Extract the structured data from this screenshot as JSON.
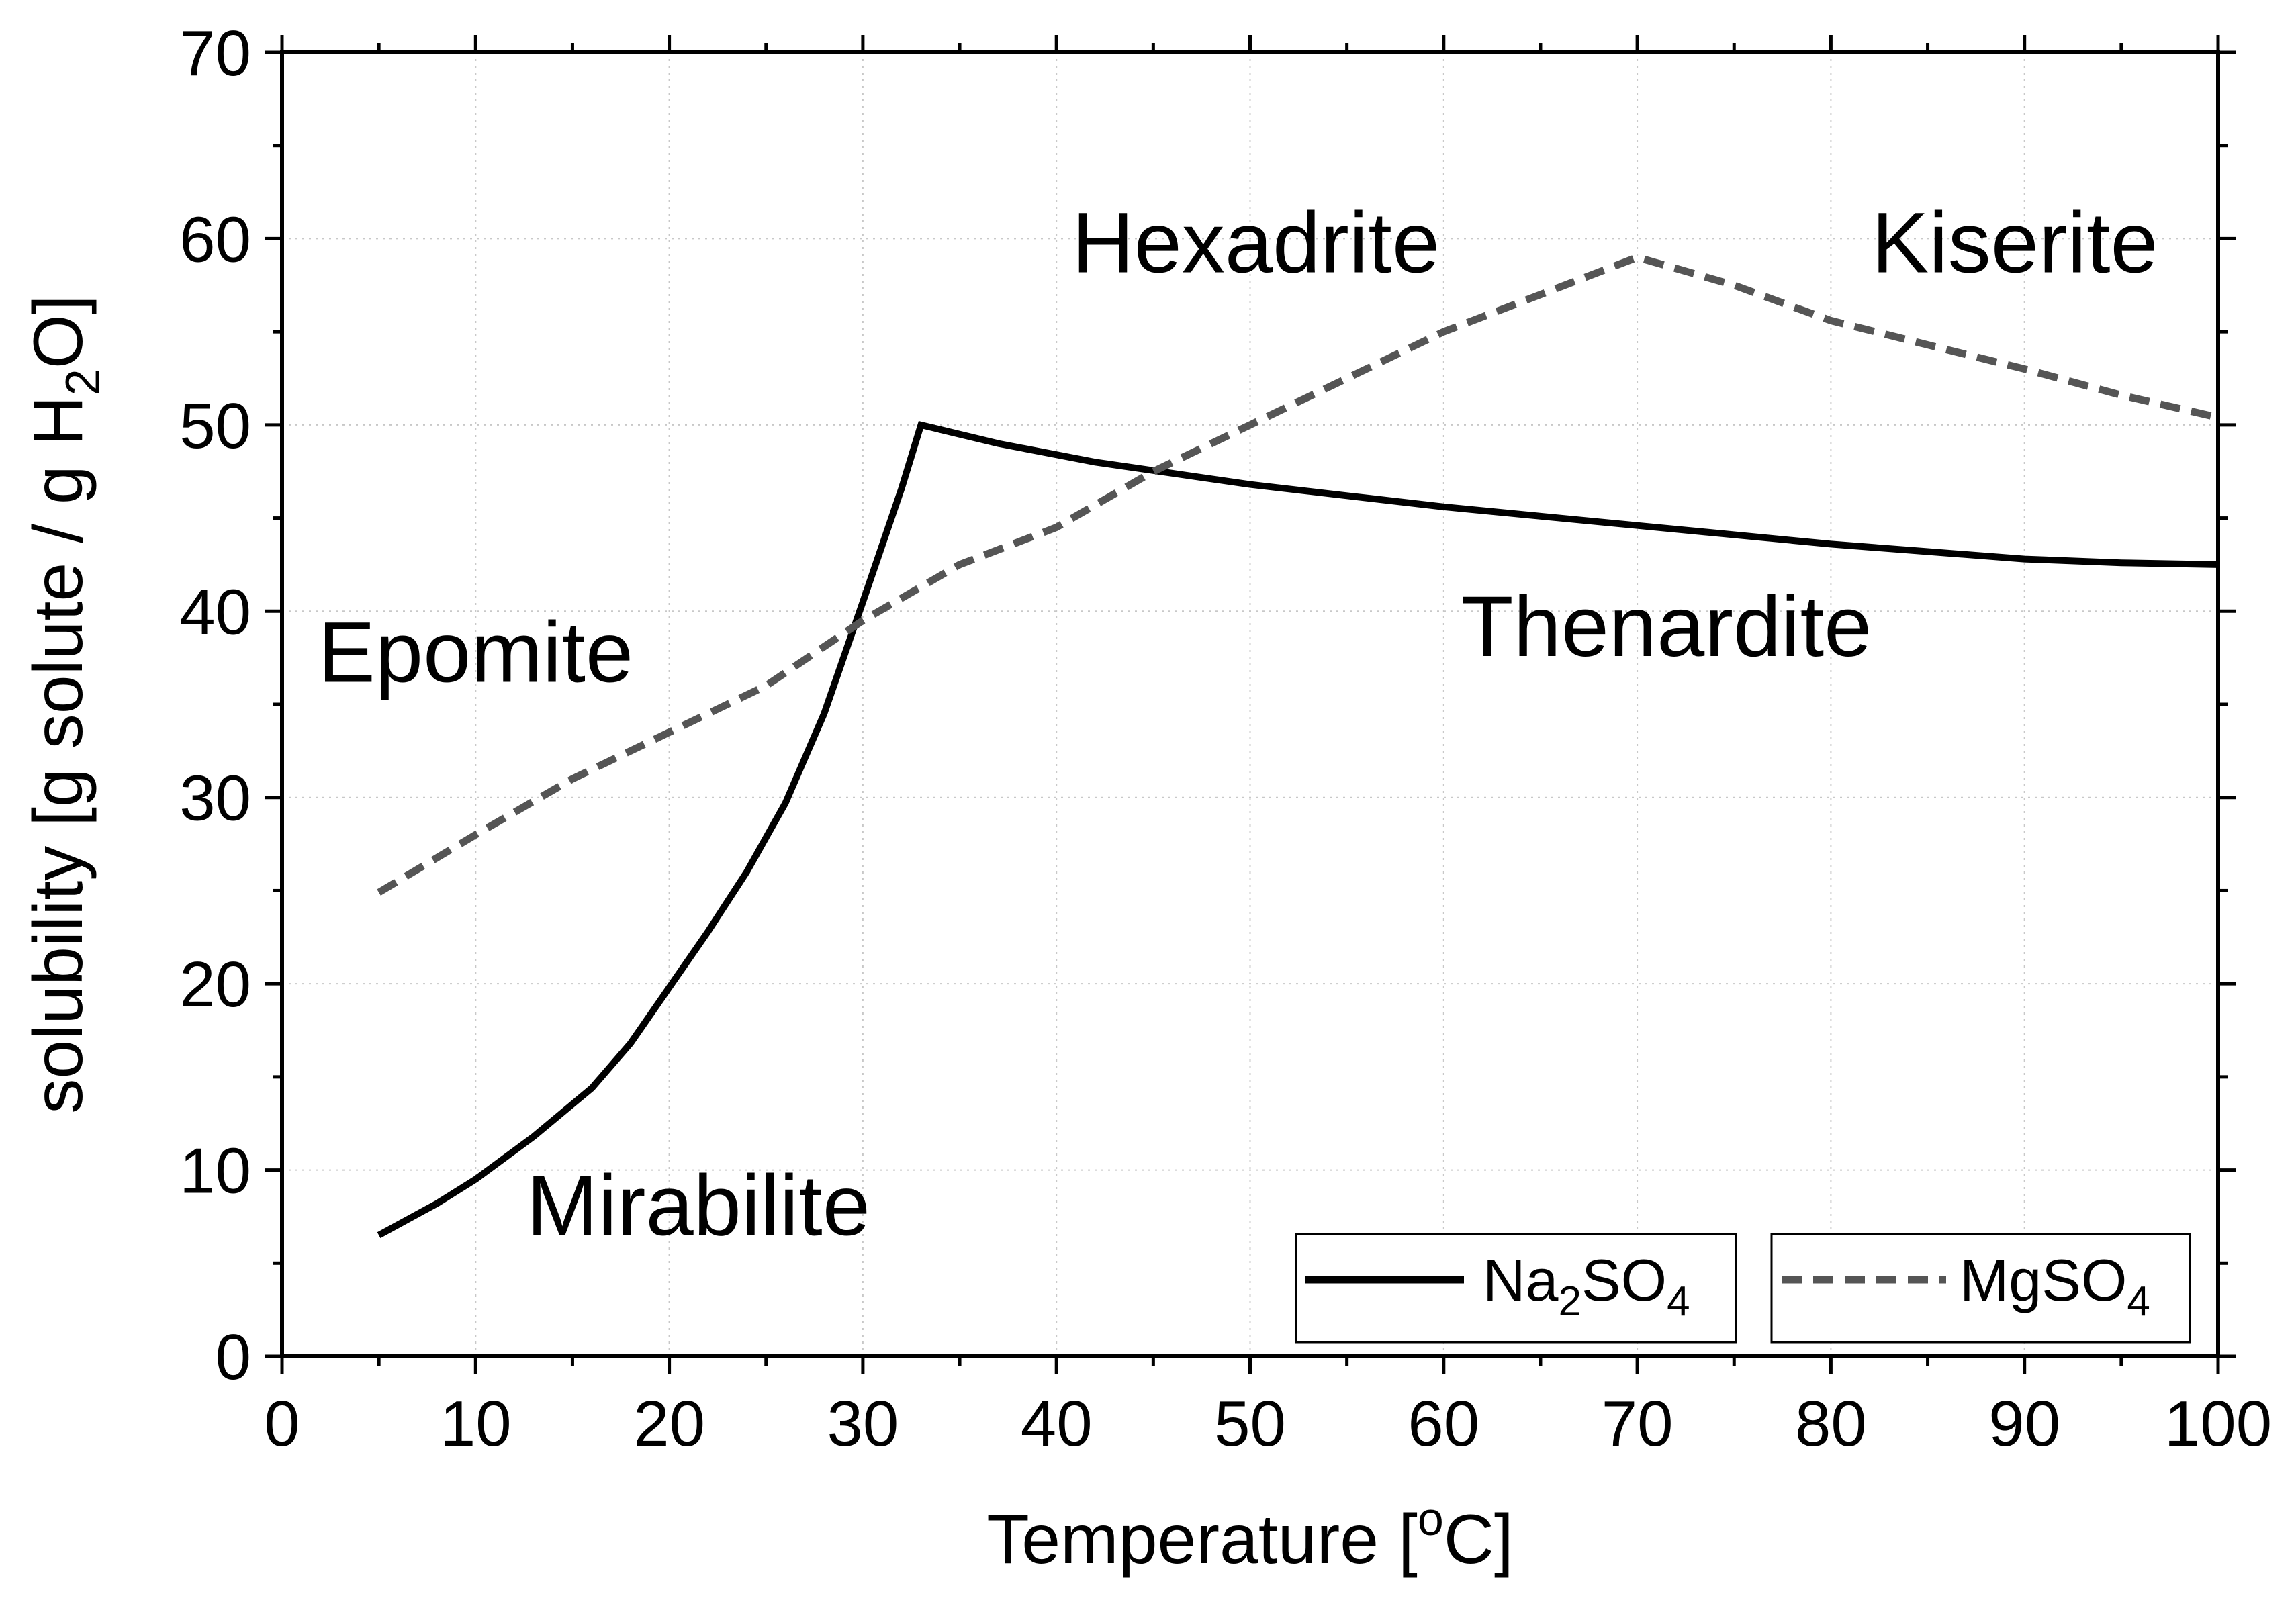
{
  "chart_data": {
    "type": "line",
    "title": "",
    "xlabel": "Temperature [°C]",
    "xlabel_parts": {
      "main": "Temperature [",
      "sup": "o",
      "end": "C]"
    },
    "ylabel": "solubility [g solute / g H2O]",
    "ylabel_parts": {
      "main": "solubility [g solute / g H",
      "sub": "2",
      "end": "O]"
    },
    "xlim": [
      0,
      100
    ],
    "ylim": [
      0,
      70
    ],
    "xticks": [
      0,
      10,
      20,
      30,
      40,
      50,
      60,
      70,
      80,
      90,
      100
    ],
    "yticks": [
      0,
      10,
      20,
      30,
      40,
      50,
      60,
      70
    ],
    "grid": true,
    "legend_position": "bottom-right",
    "series": [
      {
        "name": "Na2SO4",
        "name_parts": {
          "a": "Na",
          "sub1": "2",
          "b": "SO",
          "sub2": "4"
        },
        "style": "solid",
        "color": "#000000",
        "x": [
          5,
          8,
          10,
          13,
          16,
          18,
          20,
          22,
          24,
          26,
          28,
          30,
          32,
          33,
          37,
          42,
          50,
          55,
          60,
          65,
          70,
          75,
          80,
          85,
          90,
          95,
          100
        ],
        "y": [
          6.5,
          8.2,
          9.5,
          11.8,
          14.4,
          16.8,
          19.8,
          22.8,
          26.0,
          29.7,
          34.5,
          40.5,
          46.6,
          50.0,
          49.0,
          48.0,
          46.8,
          46.2,
          45.6,
          45.1,
          44.6,
          44.1,
          43.6,
          43.2,
          42.8,
          42.6,
          42.5
        ]
      },
      {
        "name": "MgSO4",
        "name_parts": {
          "a": "MgSO",
          "sub1": "4"
        },
        "style": "dashed",
        "color": "#555555",
        "x": [
          5,
          10,
          15,
          20,
          25,
          30,
          35,
          40,
          45,
          50,
          55,
          60,
          65,
          70,
          75,
          80,
          85,
          90,
          95,
          100
        ],
        "y": [
          24.9,
          28.0,
          31.0,
          33.5,
          36.0,
          39.5,
          42.5,
          44.5,
          47.5,
          50.0,
          52.5,
          55.0,
          57.0,
          59.0,
          57.5,
          55.6,
          54.3,
          53.0,
          51.6,
          50.4
        ]
      }
    ],
    "annotations": [
      {
        "text": "Hexadrite",
        "x": 50.3,
        "y": 58.2
      },
      {
        "text": "Kiserite",
        "x": 89.5,
        "y": 58.2
      },
      {
        "text": "Epomite",
        "x": 10,
        "y": 36.2
      },
      {
        "text": "Thenardite",
        "x": 71.5,
        "y": 37.6
      },
      {
        "text": "Mirabilite",
        "x": 21.5,
        "y": 6.5
      }
    ]
  }
}
